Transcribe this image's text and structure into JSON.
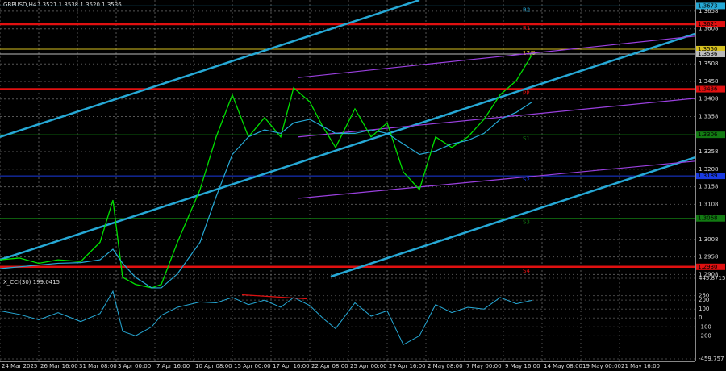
{
  "header": {
    "symbol": "GBPUSD,H4",
    "ohlc": "1.3521 1.3538 1.3520 1.3536"
  },
  "price_chart": {
    "type": "line",
    "xlim": [
      0,
      215.5
    ],
    "ylim": [
      1.2902,
      1.369
    ],
    "yticks": [
      1.3658,
      1.3608,
      1.3508,
      1.3458,
      1.3408,
      1.3358,
      1.3258,
      1.3208,
      1.3158,
      1.3108,
      1.3008,
      1.2958,
      1.2908
    ],
    "x": [
      0,
      6,
      12,
      18,
      25,
      31,
      35,
      38,
      42,
      47,
      50,
      55,
      62,
      67,
      72,
      77,
      82,
      87,
      91,
      96,
      100,
      104,
      110,
      115,
      120,
      125,
      130,
      135,
      140,
      145,
      150,
      155,
      160,
      165
    ],
    "close": [
      1.295,
      1.2955,
      1.294,
      1.295,
      1.2945,
      1.3,
      1.312,
      1.29,
      1.288,
      1.287,
      1.288,
      1.3,
      1.315,
      1.33,
      1.342,
      1.33,
      1.3355,
      1.33,
      1.344,
      1.34,
      1.333,
      1.327,
      1.338,
      1.33,
      1.334,
      1.32,
      1.315,
      1.33,
      1.327,
      1.33,
      1.335,
      1.342,
      1.346,
      1.3536
    ],
    "ma": [
      1.2925,
      1.293,
      1.2935,
      1.294,
      1.2942,
      1.295,
      1.298,
      1.294,
      1.29,
      1.287,
      1.287,
      1.291,
      1.3,
      1.313,
      1.325,
      1.33,
      1.332,
      1.331,
      1.334,
      1.335,
      1.333,
      1.331,
      1.331,
      1.332,
      1.331,
      1.328,
      1.325,
      1.326,
      1.328,
      1.329,
      1.331,
      1.335,
      1.337,
      1.34
    ],
    "color": "#00e000",
    "ma_color": "#26a9d6",
    "levels": [
      {
        "value": 1.3673,
        "label": "1.3673",
        "tag": "R2",
        "color": "#26a9d6"
      },
      {
        "value": 1.3621,
        "label": "1.3621",
        "tag": "R1",
        "color": "#e01010"
      },
      {
        "value": 1.355,
        "label": "1.3550",
        "tag": "17/8",
        "color": "#d6c020"
      },
      {
        "value": 1.3536,
        "label": "1.3536",
        "tag": "",
        "color": "#bbbbbb"
      },
      {
        "value": 1.3436,
        "label": "1.3436",
        "tag": "PP",
        "color": "#e01010"
      },
      {
        "value": 1.3306,
        "label": "1.3306",
        "tag": "S1",
        "color": "#127a12"
      },
      {
        "value": 1.3189,
        "label": "1.3189",
        "tag": "S2",
        "color": "#1a3ae0"
      },
      {
        "value": 1.3068,
        "label": "1.3068",
        "tag": "S3",
        "color": "#127a12"
      },
      {
        "value": 1.293,
        "label": "1.2930",
        "tag": "S4",
        "color": "#e01010"
      }
    ],
    "trendlines": [
      {
        "x": [
          0,
          130
        ],
        "y": [
          1.33,
          1.369
        ],
        "color": "#26a9d6"
      },
      {
        "x": [
          0,
          215.5
        ],
        "y": [
          1.295,
          1.3594
        ],
        "color": "#26a9d6"
      },
      {
        "x": [
          102.5,
          215.5
        ],
        "y": [
          1.2902,
          1.3242
        ],
        "color": "#26a9d6"
      },
      {
        "x": [
          92.5,
          215.5
        ],
        "y": [
          1.3469,
          1.3587
        ],
        "color": "#9b40e0"
      },
      {
        "x": [
          92.5,
          215.5
        ],
        "y": [
          1.33,
          1.341
        ],
        "color": "#9b40e0"
      },
      {
        "x": [
          92.5,
          215.5
        ],
        "y": [
          1.3125,
          1.3231
        ],
        "color": "#9b40e0"
      }
    ]
  },
  "cci_chart": {
    "type": "line",
    "title": "X_CCI(30) 199.0415",
    "ylim": [
      -459.757,
      445.8715
    ],
    "yticks": [
      {
        "value": 445.8715,
        "label": "445.8715"
      },
      250,
      200,
      100,
      0,
      -100,
      -200,
      {
        "value": -459.757,
        "label": "-459.757"
      }
    ],
    "values": [
      80,
      40,
      -20,
      60,
      -40,
      50,
      300,
      -150,
      -200,
      -100,
      30,
      120,
      180,
      170,
      230,
      150,
      200,
      120,
      230,
      140,
      0,
      -120,
      170,
      20,
      80,
      -300,
      -200,
      150,
      60,
      120,
      100,
      230,
      160,
      199
    ],
    "color": "#26a9d6",
    "divergence": {
      "x": [
        75,
        95
      ],
      "y": [
        260,
        215
      ],
      "color": "#e01010"
    }
  },
  "x_axis": {
    "labels": [
      "24 Mar 2025",
      "26 Mar 16:00",
      "31 Mar 08:00",
      "3 Apr 00:00",
      "7 Apr 16:00",
      "10 Apr 08:00",
      "15 Apr 00:00",
      "17 Apr 16:00",
      "22 Apr 08:00",
      "25 Apr 00:00",
      "29 Apr 16:00",
      "2 May 08:00",
      "7 May 00:00",
      "9 May 16:00",
      "14 May 08:00",
      "19 May 00:00",
      "21 May 16:00"
    ],
    "positions": [
      0,
      12,
      24,
      36,
      48,
      60,
      72,
      84,
      96,
      108,
      120,
      132,
      144,
      156,
      168,
      180,
      192
    ]
  }
}
